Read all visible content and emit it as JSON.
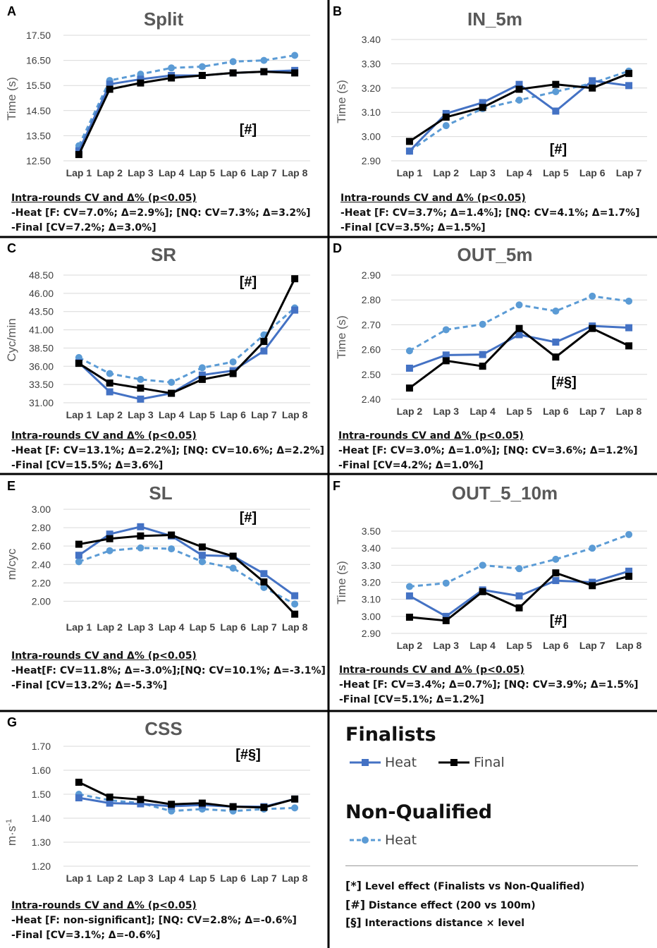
{
  "colors": {
    "heat": "#4472C4",
    "final": "#000000",
    "nq": "#5B9BD5"
  },
  "chart_data": [
    {
      "type": "line",
      "panel": "A",
      "title": "Split",
      "ylabel": "Time (s)",
      "categories": [
        "Lap 1",
        "Lap 2",
        "Lap 3",
        "Lap 4",
        "Lap 5",
        "Lap 6",
        "Lap 7",
        "Lap 8"
      ],
      "yticks": [
        "12.50",
        "13.50",
        "14.50",
        "15.50",
        "16.50",
        "17.50"
      ],
      "ylim": [
        12.5,
        17.5
      ],
      "series": [
        {
          "name": "Heat",
          "values": [
            12.9,
            15.55,
            15.75,
            15.9,
            15.9,
            16.0,
            16.05,
            16.1
          ]
        },
        {
          "name": "Final",
          "values": [
            12.75,
            15.35,
            15.6,
            15.8,
            15.9,
            16.0,
            16.05,
            16.0
          ]
        },
        {
          "name": "NQ Heat",
          "values": [
            13.1,
            15.7,
            15.95,
            16.2,
            16.25,
            16.45,
            16.5,
            16.7
          ]
        }
      ],
      "annotation": "[#]",
      "notes": {
        "header": "Intra-rounds CV and Δ% (p<0.05)",
        "heat": "-Heat [F: CV=7.0%; Δ=2.9%]; [NQ: CV=7.3%; Δ=3.2%]",
        "final": "-Final [CV=7.2%; Δ=3.0%]"
      }
    },
    {
      "type": "line",
      "panel": "B",
      "title": "IN_5m",
      "ylabel": "Time (s)",
      "categories": [
        "Lap 1",
        "Lap 2",
        "Lap 3",
        "Lap 4",
        "Lap 5",
        "Lap 6",
        "Lap 7"
      ],
      "yticks": [
        "2.90",
        "3.00",
        "3.10",
        "3.20",
        "3.30",
        "3.40"
      ],
      "ylim": [
        2.9,
        3.4
      ],
      "series": [
        {
          "name": "Heat",
          "values": [
            2.94,
            3.095,
            3.14,
            3.215,
            3.105,
            3.23,
            3.21
          ]
        },
        {
          "name": "Final",
          "values": [
            2.98,
            3.08,
            3.12,
            3.195,
            3.215,
            3.2,
            3.26
          ]
        },
        {
          "name": "NQ Heat",
          "values": [
            2.94,
            3.045,
            3.115,
            3.15,
            3.185,
            3.22,
            3.27
          ]
        }
      ],
      "annotation": "[#]",
      "notes": {
        "header": "Intra-rounds CV and Δ% (p<0.05)",
        "heat": "-Heat [F: CV=3.7%; Δ=1.4%]; [NQ: CV=4.1%; Δ=1.7%]",
        "final": "-Final [CV=3.5%; Δ=1.5%]"
      }
    },
    {
      "type": "line",
      "panel": "C",
      "title": "SR",
      "ylabel": "Cyc/min",
      "categories": [
        "Lap 1",
        "Lap 2",
        "Lap 3",
        "Lap 4",
        "Lap 5",
        "Lap 6",
        "Lap 7",
        "Lap 8"
      ],
      "yticks": [
        "31.00",
        "33.50",
        "36.00",
        "38.50",
        "41.00",
        "43.50",
        "46.00",
        "48.50"
      ],
      "ylim": [
        31,
        48.5
      ],
      "series": [
        {
          "name": "Heat",
          "values": [
            36.5,
            32.5,
            31.5,
            32.3,
            34.8,
            35.4,
            38.1,
            43.7
          ]
        },
        {
          "name": "Final",
          "values": [
            36.4,
            33.7,
            33.0,
            32.3,
            34.2,
            35.0,
            39.4,
            48.0
          ]
        },
        {
          "name": "NQ Heat",
          "values": [
            37.2,
            35.0,
            34.2,
            33.8,
            35.8,
            36.6,
            40.3,
            44.0
          ]
        }
      ],
      "annotation": "[#]",
      "notes": {
        "header": "Intra-rounds CV and Δ% (p<0.05)",
        "heat": "-Heat [F: CV=13.1%; Δ=2.2%]; [NQ: CV=10.6%; Δ=2.2%]",
        "final": "-Final [CV=15.5%; Δ=3.6%]"
      }
    },
    {
      "type": "line",
      "panel": "D",
      "title": "OUT_5m",
      "ylabel": "Time (s)",
      "categories": [
        "Lap 2",
        "Lap 3",
        "Lap 4",
        "Lap 5",
        "Lap 6",
        "Lap 7",
        "Lap 8"
      ],
      "yticks": [
        "2.40",
        "2.50",
        "2.60",
        "2.70",
        "2.80",
        "2.90"
      ],
      "ylim": [
        2.4,
        2.9
      ],
      "series": [
        {
          "name": "Heat",
          "values": [
            2.525,
            2.578,
            2.58,
            2.66,
            2.63,
            2.695,
            2.688
          ]
        },
        {
          "name": "Final",
          "values": [
            2.445,
            2.555,
            2.533,
            2.685,
            2.57,
            2.685,
            2.615
          ]
        },
        {
          "name": "NQ Heat",
          "values": [
            2.595,
            2.68,
            2.702,
            2.78,
            2.755,
            2.815,
            2.795
          ]
        }
      ],
      "annotation": "[#§]",
      "notes": {
        "header": "Intra-rounds CV and Δ% (p<0.05)",
        "heat": "-Heat [F: CV=3.0%; Δ=1.0%]; [NQ: CV=3.6%; Δ=1.2%]",
        "final": "-Final [CV=4.2%; Δ=1.0%]"
      }
    },
    {
      "type": "line",
      "panel": "E",
      "title": "SL",
      "ylabel": "m/cyc",
      "categories": [
        "Lap 1",
        "Lap 2",
        "Lap 3",
        "Lap 4",
        "Lap 5",
        "Lap 6",
        "Lap 7",
        "Lap 8"
      ],
      "yticks": [
        "2.00",
        "2.20",
        "2.40",
        "2.60",
        "2.80",
        "3.00"
      ],
      "ylim": [
        1.85,
        3.0
      ],
      "series": [
        {
          "name": "Heat",
          "values": [
            2.5,
            2.73,
            2.81,
            2.71,
            2.5,
            2.49,
            2.3,
            2.06
          ]
        },
        {
          "name": "Final",
          "values": [
            2.62,
            2.68,
            2.71,
            2.72,
            2.59,
            2.49,
            2.21,
            1.86
          ]
        },
        {
          "name": "NQ Heat",
          "values": [
            2.43,
            2.55,
            2.58,
            2.57,
            2.43,
            2.36,
            2.15,
            1.97
          ]
        }
      ],
      "annotation": "[#]",
      "notes": {
        "header": "Intra-rounds CV and Δ% (p<0.05)",
        "heat": "-Heat[F: CV=11.8%; Δ=-3.0%];[NQ: CV=10.1%; Δ=-3.1%]",
        "final": "-Final [CV=13.2%; Δ=-5.3%]"
      }
    },
    {
      "type": "line",
      "panel": "F",
      "title": "OUT_5_10m",
      "ylabel": "Time (s)",
      "categories": [
        "Lap 2",
        "Lap 3",
        "Lap 4",
        "Lap 5",
        "Lap 6",
        "Lap 7",
        "Lap 8"
      ],
      "yticks": [
        "2.90",
        "3.00",
        "3.10",
        "3.20",
        "3.30",
        "3.40",
        "3.50"
      ],
      "ylim": [
        2.9,
        3.5
      ],
      "series": [
        {
          "name": "Heat",
          "values": [
            3.12,
            3.0,
            3.155,
            3.12,
            3.21,
            3.2,
            3.265
          ]
        },
        {
          "name": "Final",
          "values": [
            2.995,
            2.975,
            3.145,
            3.05,
            3.255,
            3.18,
            3.235
          ]
        },
        {
          "name": "NQ Heat",
          "values": [
            3.175,
            3.195,
            3.3,
            3.28,
            3.335,
            3.4,
            3.48
          ]
        }
      ],
      "annotation": "[#]",
      "notes": {
        "header": "Intra-rounds CV and Δ% (p<0.05)",
        "heat": "-Heat [F: CV=3.4%; Δ=0.7%]; [NQ: CV=3.9%; Δ=1.5%]",
        "final": "-Final [CV=5.1%; Δ=1.2%]"
      }
    },
    {
      "type": "line",
      "panel": "G",
      "title": "CSS",
      "ylabel": "m·s",
      "ylabel_superscript": "-1",
      "categories": [
        "Lap 1",
        "Lap 2",
        "Lap 3",
        "Lap 4",
        "Lap 5",
        "Lap 6",
        "Lap 7",
        "Lap 8"
      ],
      "yticks": [
        "1.20",
        "1.30",
        "1.40",
        "1.50",
        "1.60",
        "1.70"
      ],
      "ylim": [
        1.2,
        1.7
      ],
      "series": [
        {
          "name": "Heat",
          "values": [
            1.485,
            1.463,
            1.46,
            1.45,
            1.455,
            1.448,
            1.448,
            1.48
          ]
        },
        {
          "name": "Final",
          "values": [
            1.55,
            1.488,
            1.478,
            1.458,
            1.463,
            1.448,
            1.445,
            1.48
          ]
        },
        {
          "name": "NQ Heat",
          "values": [
            1.5,
            1.475,
            1.463,
            1.43,
            1.438,
            1.43,
            1.438,
            1.443
          ]
        }
      ],
      "annotation": "[#§]",
      "notes": {
        "header": "Intra-rounds CV and Δ% (p<0.05)",
        "heat": "-Heat [F: non-significant]; [NQ: CV=2.8%; Δ=-0.6%]",
        "final": "-Final [CV=3.1%; Δ=-0.6%]"
      }
    }
  ],
  "legend": {
    "finalists_title": "Finalists",
    "heat_label": "Heat",
    "final_label": "Final",
    "nq_title": "Non-Qualified",
    "nq_heat_label": "Heat",
    "notes": [
      {
        "symbol": "[*]",
        "text": "Level effect (Finalists vs Non-Qualified)"
      },
      {
        "symbol": "[#]",
        "text": "Distance effect (200 vs 100m)"
      },
      {
        "symbol": "[§]",
        "text": "Interactions distance × level"
      }
    ]
  }
}
